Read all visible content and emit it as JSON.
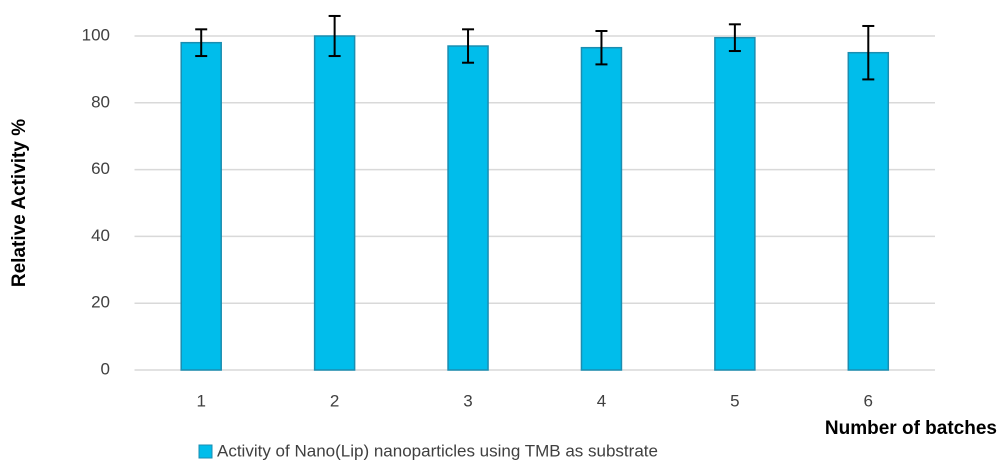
{
  "chart_data": {
    "type": "bar",
    "x_label": "Number of batches",
    "y_label": "Relative Activity %",
    "categories": [
      "1",
      "2",
      "3",
      "4",
      "5",
      "6"
    ],
    "series": [
      {
        "name": "Activity of Nano(Lip) nanoparticles using TMB as substrate",
        "color": "#00bdeb",
        "values": [
          98,
          100,
          97,
          96.5,
          99.5,
          95
        ],
        "errors": [
          4,
          6,
          5,
          5,
          4,
          8
        ]
      }
    ],
    "ylim": [
      0,
      100
    ],
    "yticks": [
      0,
      20,
      40,
      60,
      80,
      100
    ],
    "grid": true
  }
}
